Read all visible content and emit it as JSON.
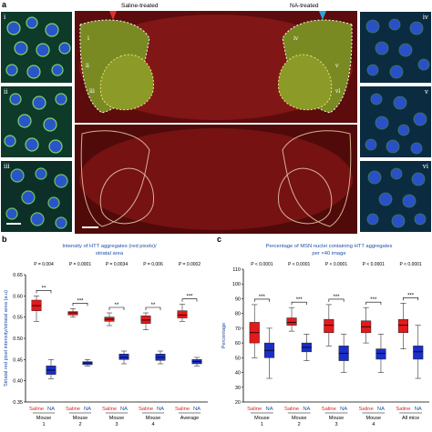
{
  "panels": {
    "a": "a",
    "b": "b",
    "c": "c"
  },
  "images": {
    "saline_label": "Saline-treated",
    "na_label": "NA-treated",
    "left_tiles": [
      "i",
      "ii",
      "iii"
    ],
    "right_tiles": [
      "iv",
      "v",
      "vi"
    ],
    "region_labels": [
      "i",
      "ii",
      "iii",
      "iv",
      "v",
      "vi"
    ],
    "colors": {
      "tissue_red": "#8a1414",
      "nuclei_blue": "#2040c0",
      "htt_green": "#60c040",
      "saline_arrow": "#e03030",
      "na_arrow": "#30a0e0"
    }
  },
  "chart_data": [
    {
      "type": "box",
      "panel": "b",
      "title": "Intensity of HTT aggregates (red pixels)/ striatal area",
      "ylabel": "Striatal red pixel intensity/striatal area (a.u)",
      "ylim": [
        0.35,
        0.65
      ],
      "yticks": [
        0.35,
        0.4,
        0.45,
        0.5,
        0.55,
        0.6,
        0.65
      ],
      "ytick_labels": [
        "0.35",
        "0.40",
        "0.45",
        "0.50",
        "0.55",
        "0.60",
        "0.65"
      ],
      "categories": [
        "Saline",
        "NA"
      ],
      "groups": [
        {
          "name": "Mouse 1",
          "p": "P = 0.004",
          "stars": "**",
          "saline": {
            "min": 0.54,
            "q1": 0.565,
            "median": 0.577,
            "q3": 0.59,
            "max": 0.6
          },
          "na": {
            "min": 0.405,
            "q1": 0.415,
            "median": 0.425,
            "q3": 0.435,
            "max": 0.45
          }
        },
        {
          "name": "Mouse 2",
          "p": "P = 0.0001",
          "stars": "***",
          "saline": {
            "min": 0.55,
            "q1": 0.555,
            "median": 0.56,
            "q3": 0.563,
            "max": 0.57
          },
          "na": {
            "min": 0.435,
            "q1": 0.438,
            "median": 0.442,
            "q3": 0.445,
            "max": 0.45
          }
        },
        {
          "name": "Mouse 3",
          "p": "P = 0.0034",
          "stars": "**",
          "saline": {
            "min": 0.53,
            "q1": 0.54,
            "median": 0.545,
            "q3": 0.55,
            "max": 0.56
          },
          "na": {
            "min": 0.44,
            "q1": 0.45,
            "median": 0.455,
            "q3": 0.463,
            "max": 0.47
          }
        },
        {
          "name": "Mouse 4",
          "p": "P = 0.006",
          "stars": "**",
          "saline": {
            "min": 0.52,
            "q1": 0.535,
            "median": 0.543,
            "q3": 0.553,
            "max": 0.56
          },
          "na": {
            "min": 0.44,
            "q1": 0.448,
            "median": 0.455,
            "q3": 0.463,
            "max": 0.47
          }
        },
        {
          "name": "Average",
          "p": "P = 0.0002",
          "stars": "***",
          "saline": {
            "min": 0.54,
            "q1": 0.548,
            "median": 0.555,
            "q3": 0.565,
            "max": 0.58
          },
          "na": {
            "min": 0.435,
            "q1": 0.44,
            "median": 0.445,
            "q3": 0.45,
            "max": 0.455
          }
        }
      ],
      "x_group_labels": [
        [
          "Mouse",
          "1"
        ],
        [
          "Mouse",
          "2"
        ],
        [
          "Mouse",
          "3"
        ],
        [
          "Mouse",
          "4"
        ],
        [
          "Average",
          ""
        ]
      ]
    },
    {
      "type": "box",
      "panel": "c",
      "title": "Percentage of MSN nuclei containing HTT aggregates per ×40 image",
      "ylabel": "Percentage",
      "ylim": [
        20,
        110
      ],
      "yticks": [
        20,
        30,
        40,
        50,
        60,
        70,
        80,
        90,
        100,
        110
      ],
      "ytick_labels": [
        "20",
        "30",
        "40",
        "50",
        "60",
        "70",
        "80",
        "90",
        "100",
        "110"
      ],
      "categories": [
        "Saline",
        "NA"
      ],
      "groups": [
        {
          "name": "Mouse 1",
          "p": "P < 0.0001",
          "stars": "***",
          "saline": {
            "min": 50,
            "q1": 60,
            "median": 67,
            "q3": 74,
            "max": 86
          },
          "na": {
            "min": 36,
            "q1": 50,
            "median": 55,
            "q3": 60,
            "max": 70
          }
        },
        {
          "name": "Mouse 2",
          "p": "P < 0.0001",
          "stars": "***",
          "saline": {
            "min": 68,
            "q1": 72,
            "median": 74,
            "q3": 77,
            "max": 84
          },
          "na": {
            "min": 48,
            "q1": 54,
            "median": 57,
            "q3": 60,
            "max": 66
          }
        },
        {
          "name": "Mouse 3",
          "p": "P < 0.0001",
          "stars": "***",
          "saline": {
            "min": 58,
            "q1": 67,
            "median": 72,
            "q3": 76,
            "max": 86
          },
          "na": {
            "min": 40,
            "q1": 48,
            "median": 53,
            "q3": 58,
            "max": 66
          }
        },
        {
          "name": "Mouse 4",
          "p": "P < 0.0001",
          "stars": "***",
          "saline": {
            "min": 60,
            "q1": 67,
            "median": 71,
            "q3": 75,
            "max": 84
          },
          "na": {
            "min": 40,
            "q1": 49,
            "median": 53,
            "q3": 56,
            "max": 66
          }
        },
        {
          "name": "All mice",
          "p": "P < 0.0001",
          "stars": "***",
          "saline": {
            "min": 56,
            "q1": 67,
            "median": 72,
            "q3": 76,
            "max": 87
          },
          "na": {
            "min": 36,
            "q1": 49,
            "median": 54,
            "q3": 58,
            "max": 72
          }
        }
      ],
      "x_group_labels": [
        [
          "Mouse",
          "1"
        ],
        [
          "Mouse",
          "2"
        ],
        [
          "Mouse",
          "3"
        ],
        [
          "Mouse",
          "4"
        ],
        [
          "All mice",
          ""
        ]
      ]
    }
  ]
}
